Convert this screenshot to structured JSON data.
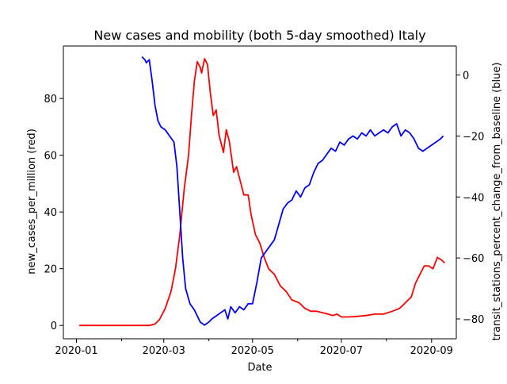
{
  "chart_data": {
    "type": "line",
    "title": "New cases and mobility (both 5-day smoothed) Italy",
    "xlabel": "Date",
    "ylabel_left": "new_cases_per_million (red)",
    "ylabel_right": "transit_stations_percent_change_from_baseline (blue)",
    "x_ticks": [
      "2020-01",
      "2020-03",
      "2020-05",
      "2020-07",
      "2020-09"
    ],
    "y_left_ticks": [
      0,
      20,
      40,
      60,
      80
    ],
    "y_right_ticks": [
      0,
      -20,
      -40,
      -60,
      -80
    ],
    "ylim_left": [
      -4.7,
      98.5
    ],
    "ylim_right": [
      -86.5,
      9.5
    ],
    "xlim": [
      "2019-12-23",
      "2020-09-18"
    ],
    "grid": false,
    "series": [
      {
        "name": "new_cases_per_million",
        "axis": "left",
        "color": "#ff0000",
        "points": [
          [
            "2020-01-03",
            0
          ],
          [
            "2020-02-20",
            0
          ],
          [
            "2020-02-24",
            0.5
          ],
          [
            "2020-02-27",
            2
          ],
          [
            "2020-03-02",
            6
          ],
          [
            "2020-03-06",
            12
          ],
          [
            "2020-03-09",
            20
          ],
          [
            "2020-03-12",
            32
          ],
          [
            "2020-03-15",
            48
          ],
          [
            "2020-03-18",
            60
          ],
          [
            "2020-03-20",
            74
          ],
          [
            "2020-03-22",
            86
          ],
          [
            "2020-03-24",
            93
          ],
          [
            "2020-03-26",
            91
          ],
          [
            "2020-03-27",
            89
          ],
          [
            "2020-03-29",
            94
          ],
          [
            "2020-03-31",
            92
          ],
          [
            "2020-04-02",
            82
          ],
          [
            "2020-04-04",
            74
          ],
          [
            "2020-04-06",
            76
          ],
          [
            "2020-04-08",
            67
          ],
          [
            "2020-04-11",
            61
          ],
          [
            "2020-04-13",
            69
          ],
          [
            "2020-04-15",
            65
          ],
          [
            "2020-04-18",
            54
          ],
          [
            "2020-04-20",
            56
          ],
          [
            "2020-04-22",
            52
          ],
          [
            "2020-04-25",
            46
          ],
          [
            "2020-04-28",
            46
          ],
          [
            "2020-04-30",
            39
          ],
          [
            "2020-05-03",
            32
          ],
          [
            "2020-05-06",
            29
          ],
          [
            "2020-05-09",
            24
          ],
          [
            "2020-05-12",
            20
          ],
          [
            "2020-05-16",
            18
          ],
          [
            "2020-05-20",
            14
          ],
          [
            "2020-05-24",
            12
          ],
          [
            "2020-05-28",
            9
          ],
          [
            "2020-06-02",
            8
          ],
          [
            "2020-06-06",
            6
          ],
          [
            "2020-06-10",
            5
          ],
          [
            "2020-06-14",
            5
          ],
          [
            "2020-06-18",
            4.5
          ],
          [
            "2020-06-22",
            4
          ],
          [
            "2020-06-25",
            3.5
          ],
          [
            "2020-06-28",
            4
          ],
          [
            "2020-07-01",
            3
          ],
          [
            "2020-07-06",
            3
          ],
          [
            "2020-07-12",
            3.2
          ],
          [
            "2020-07-18",
            3.5
          ],
          [
            "2020-07-24",
            4
          ],
          [
            "2020-07-30",
            4
          ],
          [
            "2020-08-05",
            5
          ],
          [
            "2020-08-10",
            6
          ],
          [
            "2020-08-14",
            8
          ],
          [
            "2020-08-18",
            10
          ],
          [
            "2020-08-21",
            15
          ],
          [
            "2020-08-24",
            18
          ],
          [
            "2020-08-27",
            21
          ],
          [
            "2020-08-30",
            21
          ],
          [
            "2020-09-02",
            20
          ],
          [
            "2020-09-05",
            24
          ],
          [
            "2020-09-08",
            23
          ],
          [
            "2020-09-10",
            22
          ]
        ]
      },
      {
        "name": "transit_stations_percent_change_from_baseline",
        "axis": "right",
        "color": "#0000ff",
        "points": [
          [
            "2020-02-15",
            6
          ],
          [
            "2020-02-17",
            5
          ],
          [
            "2020-02-18",
            4
          ],
          [
            "2020-02-20",
            5
          ],
          [
            "2020-02-22",
            -2
          ],
          [
            "2020-02-24",
            -10
          ],
          [
            "2020-02-26",
            -15
          ],
          [
            "2020-02-28",
            -17
          ],
          [
            "2020-03-02",
            -18
          ],
          [
            "2020-03-05",
            -20
          ],
          [
            "2020-03-08",
            -22
          ],
          [
            "2020-03-10",
            -30
          ],
          [
            "2020-03-12",
            -45
          ],
          [
            "2020-03-14",
            -60
          ],
          [
            "2020-03-16",
            -70
          ],
          [
            "2020-03-19",
            -75
          ],
          [
            "2020-03-22",
            -77
          ],
          [
            "2020-03-24",
            -79
          ],
          [
            "2020-03-26",
            -81
          ],
          [
            "2020-03-29",
            -82
          ],
          [
            "2020-04-01",
            -81
          ],
          [
            "2020-04-03",
            -80
          ],
          [
            "2020-04-06",
            -79
          ],
          [
            "2020-04-09",
            -78
          ],
          [
            "2020-04-12",
            -77
          ],
          [
            "2020-04-14",
            -80
          ],
          [
            "2020-04-16",
            -76
          ],
          [
            "2020-04-19",
            -78
          ],
          [
            "2020-04-22",
            -76
          ],
          [
            "2020-04-25",
            -77
          ],
          [
            "2020-04-28",
            -75
          ],
          [
            "2020-05-01",
            -75
          ],
          [
            "2020-05-04",
            -68
          ],
          [
            "2020-05-07",
            -60
          ],
          [
            "2020-05-10",
            -58
          ],
          [
            "2020-05-13",
            -56
          ],
          [
            "2020-05-16",
            -54
          ],
          [
            "2020-05-19",
            -49
          ],
          [
            "2020-05-22",
            -44
          ],
          [
            "2020-05-25",
            -42
          ],
          [
            "2020-05-28",
            -41
          ],
          [
            "2020-05-31",
            -38
          ],
          [
            "2020-06-03",
            -40
          ],
          [
            "2020-06-06",
            -37
          ],
          [
            "2020-06-09",
            -36
          ],
          [
            "2020-06-12",
            -32
          ],
          [
            "2020-06-15",
            -29
          ],
          [
            "2020-06-18",
            -28
          ],
          [
            "2020-06-21",
            -26
          ],
          [
            "2020-06-24",
            -24
          ],
          [
            "2020-06-27",
            -25
          ],
          [
            "2020-06-30",
            -22
          ],
          [
            "2020-07-03",
            -23
          ],
          [
            "2020-07-06",
            -21
          ],
          [
            "2020-07-09",
            -20
          ],
          [
            "2020-07-12",
            -21
          ],
          [
            "2020-07-15",
            -19
          ],
          [
            "2020-07-18",
            -20
          ],
          [
            "2020-07-21",
            -18
          ],
          [
            "2020-07-24",
            -20
          ],
          [
            "2020-07-27",
            -19
          ],
          [
            "2020-07-30",
            -18
          ],
          [
            "2020-08-02",
            -19
          ],
          [
            "2020-08-05",
            -17
          ],
          [
            "2020-08-08",
            -16
          ],
          [
            "2020-08-11",
            -20
          ],
          [
            "2020-08-14",
            -18
          ],
          [
            "2020-08-17",
            -19
          ],
          [
            "2020-08-20",
            -21
          ],
          [
            "2020-08-23",
            -24
          ],
          [
            "2020-08-26",
            -25
          ],
          [
            "2020-08-29",
            -24
          ],
          [
            "2020-09-01",
            -23
          ],
          [
            "2020-09-04",
            -22
          ],
          [
            "2020-09-07",
            -21
          ],
          [
            "2020-09-09",
            -20
          ]
        ]
      }
    ]
  }
}
